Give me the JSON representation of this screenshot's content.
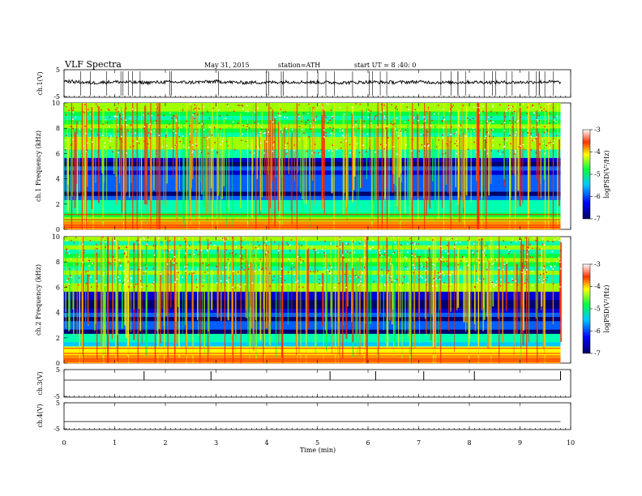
{
  "header": {
    "title": "VLF Spectra",
    "date": "May 31, 2015",
    "station": "station=ATH",
    "start": "start UT =  8 :40: 0"
  },
  "chart_data": [
    {
      "type": "line",
      "panel": "ch1",
      "ylabel": "ch.1(V)",
      "ylim": [
        -5,
        5
      ],
      "y_ticks": [
        "5",
        "-5"
      ],
      "x": [
        0,
        0.5,
        1,
        1.5,
        2,
        2.5,
        3,
        3.5,
        4,
        4.5,
        5,
        5.5,
        6,
        6.5,
        7,
        7.5,
        8,
        8.5,
        9,
        9.5,
        9.8
      ],
      "values": [
        1.5,
        0.8,
        1.2,
        0.9,
        1.1,
        1.0,
        1.3,
        0.9,
        1.0,
        1.2,
        1.0,
        0.9,
        1.1,
        1.0,
        1.2,
        0.9,
        1.1,
        1.0,
        1.0,
        1.2,
        1.1
      ]
    },
    {
      "type": "heatmap",
      "panel": "ch1-spectrogram",
      "ylabel": "ch.1 Frequency (kHz)",
      "ylim": [
        0,
        10
      ],
      "y_ticks": [
        "0",
        "2",
        "4",
        "6",
        "8",
        "10"
      ],
      "xlim": [
        0,
        10
      ],
      "colorbar": {
        "label": "logPSD(V²/Hz)",
        "range": [
          -7,
          -3
        ],
        "ticks": [
          "-3",
          "-4",
          "-5",
          "-6",
          "-7"
        ]
      }
    },
    {
      "type": "heatmap",
      "panel": "ch2-spectrogram",
      "ylabel": "ch.2 Frequency (kHz)",
      "ylim": [
        0,
        10
      ],
      "y_ticks": [
        "0",
        "2",
        "4",
        "6",
        "8",
        "10"
      ],
      "xlim": [
        0,
        10
      ],
      "colorbar": {
        "label": "logPSD(V²/Hz)",
        "range": [
          -7,
          -3
        ],
        "ticks": [
          "-3",
          "-4",
          "-5",
          "-6",
          "-7"
        ]
      }
    },
    {
      "type": "line",
      "panel": "ch3",
      "ylabel": "ch.3(V)",
      "ylim": [
        -5,
        5
      ],
      "y_ticks": [
        "5",
        "-5"
      ],
      "spikes_min": [
        1.58,
        2.9,
        5.25,
        6.15,
        7.1,
        8.1,
        9.8
      ]
    },
    {
      "type": "line",
      "panel": "ch4",
      "ylabel": "ch.4(V)",
      "ylim": [
        -5,
        5
      ],
      "y_ticks": [
        "5",
        "-5"
      ],
      "x": [
        0,
        9.8
      ],
      "values": [
        -2,
        -2
      ]
    }
  ],
  "x_axis": {
    "label": "Time (min)",
    "ticks": [
      "0",
      "1",
      "2",
      "3",
      "4",
      "5",
      "6",
      "7",
      "8",
      "9",
      "10"
    ],
    "xlim": [
      0,
      10
    ]
  }
}
